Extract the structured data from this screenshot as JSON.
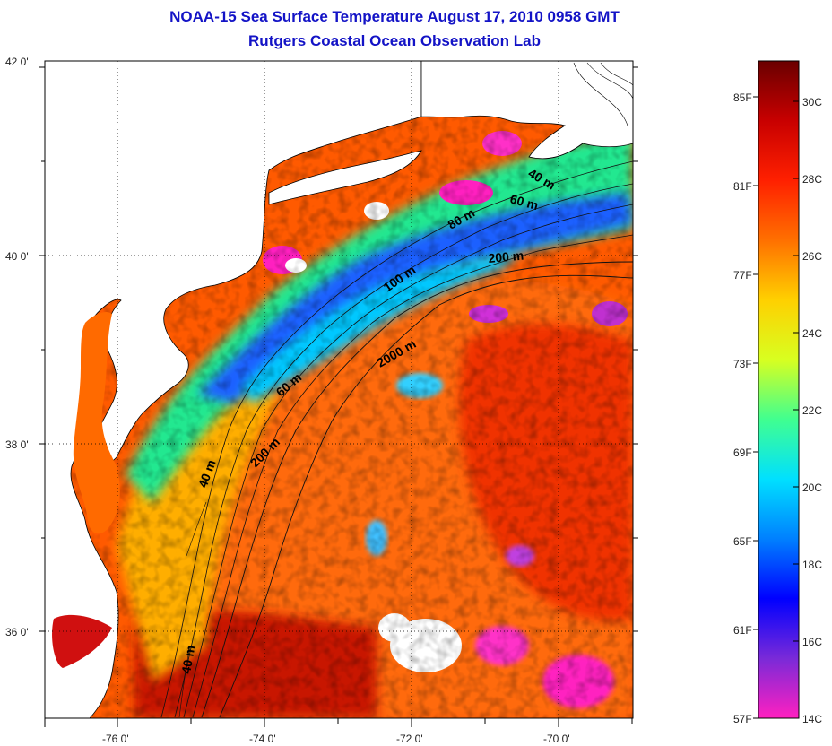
{
  "title": {
    "line1": "NOAA-15 Sea Surface Temperature August 17, 2010 0958 GMT",
    "line2": "Rutgers Coastal Ocean Observation Lab"
  },
  "map": {
    "lat_ticks": [
      "42 0'",
      "40 0'",
      "38 0'",
      "36 0'"
    ],
    "lon_ticks": [
      "-76 0'",
      "-74 0'",
      "-72 0'",
      "-70 0'"
    ],
    "contour_labels": [
      "40 m",
      "60 m",
      "80 m",
      "200 m",
      "100 m",
      "2000 m",
      "60 m",
      "200 m",
      "40 m",
      "40 m"
    ],
    "colors": {
      "land": "#ffffff",
      "cloud": "#ffffff",
      "warm": "#ff3c00",
      "shelf": "#00ff80",
      "cold": "#ff20c0"
    }
  },
  "colorbar": {
    "fahrenheit_labels": [
      "85F",
      "81F",
      "77F",
      "73F",
      "69F",
      "65F",
      "61F",
      "57F"
    ],
    "celsius_labels": [
      "30C",
      "28C",
      "26C",
      "24C",
      "22C",
      "20C",
      "18C",
      "16C",
      "14C"
    ],
    "stops": [
      "#ff20c0",
      "#7a2ad8",
      "#0000ff",
      "#0080ff",
      "#00e0ff",
      "#40ff90",
      "#d8ff20",
      "#ffd000",
      "#ff7000",
      "#ff2000",
      "#c80000",
      "#6a0000"
    ]
  }
}
